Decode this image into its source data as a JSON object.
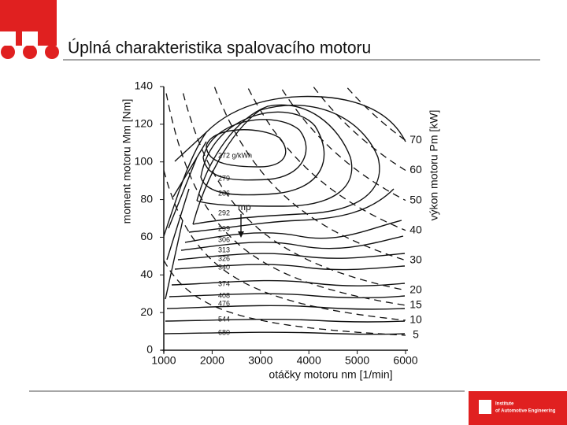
{
  "header": {
    "title": "Úplná charakteristika spalovacího motoru"
  },
  "figure": {
    "y_axis_label": "moment motoru Mm [Nm]",
    "y_ticks": [
      0,
      20,
      40,
      60,
      80,
      100,
      120,
      140
    ],
    "x_axis_label": "otáčky motoru nm [1/min]",
    "x_ticks": [
      1000,
      2000,
      3000,
      4000,
      5000,
      6000
    ],
    "y2_axis_label": "výkon motoru Pm [kW]",
    "y2_ticks": [
      5,
      10,
      15,
      20,
      30,
      40,
      50,
      60,
      70
    ],
    "contour_labels": [
      "272 g/kWh",
      "279",
      "286",
      "292",
      "299",
      "306",
      "313",
      "326",
      "340",
      "374",
      "408",
      "476",
      "544",
      "680"
    ],
    "arrow_label": "mp"
  },
  "footer": {
    "logo_line1": "Institute",
    "logo_line2": "of Automotive Engineering"
  }
}
